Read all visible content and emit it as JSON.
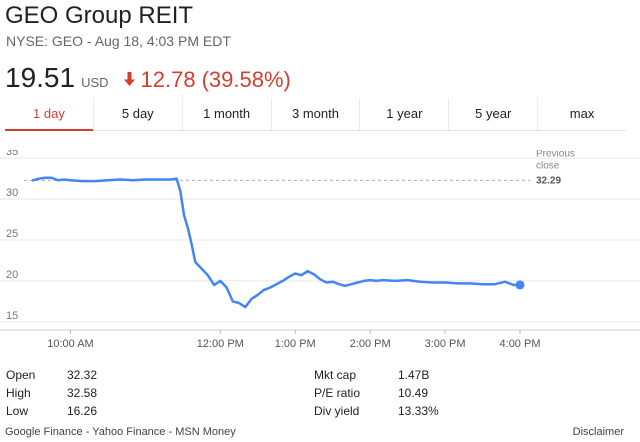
{
  "header": {
    "title": "GEO Group REIT",
    "subtitle": "NYSE: GEO - Aug 18, 4:03 PM EDT"
  },
  "quote": {
    "price": "19.51",
    "currency": "USD",
    "change": "12.78",
    "change_pct": "(39.58%)",
    "direction": "down",
    "down_color": "#d23f31"
  },
  "tabs": [
    {
      "label": "1 day",
      "active": true
    },
    {
      "label": "5 day",
      "active": false
    },
    {
      "label": "1 month",
      "active": false
    },
    {
      "label": "3 month",
      "active": false
    },
    {
      "label": "1 year",
      "active": false
    },
    {
      "label": "5 year",
      "active": false
    },
    {
      "label": "max",
      "active": false
    }
  ],
  "chart_data": {
    "type": "line",
    "line_color": "#4285f4",
    "grid": true,
    "ylim": [
      14,
      36
    ],
    "y_ticks": [
      15,
      20,
      25,
      30,
      35
    ],
    "x_ticks": [
      "10:00 AM",
      "12:00 PM",
      "1:00 PM",
      "2:00 PM",
      "3:00 PM",
      "4:00 PM"
    ],
    "x_tick_minutes": [
      30,
      150,
      210,
      270,
      330,
      390
    ],
    "xlim_minutes": [
      0,
      390
    ],
    "previous_close": {
      "label_line1": "Previous",
      "label_line2": "close",
      "value": "32.29",
      "y": 32.29
    },
    "series": [
      {
        "x": [
          0,
          5,
          10,
          15,
          20,
          25,
          30,
          40,
          50,
          60,
          70,
          80,
          90,
          100,
          110,
          115,
          118,
          121,
          124,
          127,
          130,
          135,
          140,
          145,
          150,
          155,
          160,
          165,
          170,
          175,
          180,
          185,
          190,
          195,
          200,
          205,
          210,
          215,
          220,
          225,
          230,
          235,
          240,
          245,
          250,
          255,
          260,
          265,
          270,
          275,
          280,
          290,
          300,
          310,
          320,
          330,
          340,
          350,
          360,
          370,
          378,
          385,
          390
        ],
        "y": [
          32.3,
          32.5,
          32.6,
          32.6,
          32.3,
          32.4,
          32.3,
          32.2,
          32.2,
          32.3,
          32.4,
          32.3,
          32.4,
          32.4,
          32.4,
          32.5,
          31.0,
          28.0,
          26.5,
          24.5,
          22.3,
          21.5,
          20.7,
          19.5,
          20.0,
          19.2,
          17.5,
          17.3,
          16.8,
          17.8,
          18.3,
          18.9,
          19.2,
          19.6,
          20.0,
          20.5,
          20.9,
          20.7,
          21.2,
          20.8,
          20.2,
          19.8,
          19.9,
          19.6,
          19.4,
          19.6,
          19.8,
          20.0,
          20.1,
          20.0,
          20.1,
          20.0,
          20.1,
          19.9,
          19.8,
          19.8,
          19.7,
          19.7,
          19.6,
          19.6,
          19.9,
          19.5,
          19.51
        ]
      }
    ]
  },
  "stats": {
    "left": [
      {
        "label": "Open",
        "value": "32.32"
      },
      {
        "label": "High",
        "value": "32.58"
      },
      {
        "label": "Low",
        "value": "16.26"
      }
    ],
    "right": [
      {
        "label": "Mkt cap",
        "value": "1.47B"
      },
      {
        "label": "P/E ratio",
        "value": "10.49"
      },
      {
        "label": "Div yield",
        "value": "13.33%"
      }
    ]
  },
  "footer": {
    "links": "Google Finance - Yahoo Finance - MSN Money",
    "disclaimer": "Disclaimer"
  }
}
